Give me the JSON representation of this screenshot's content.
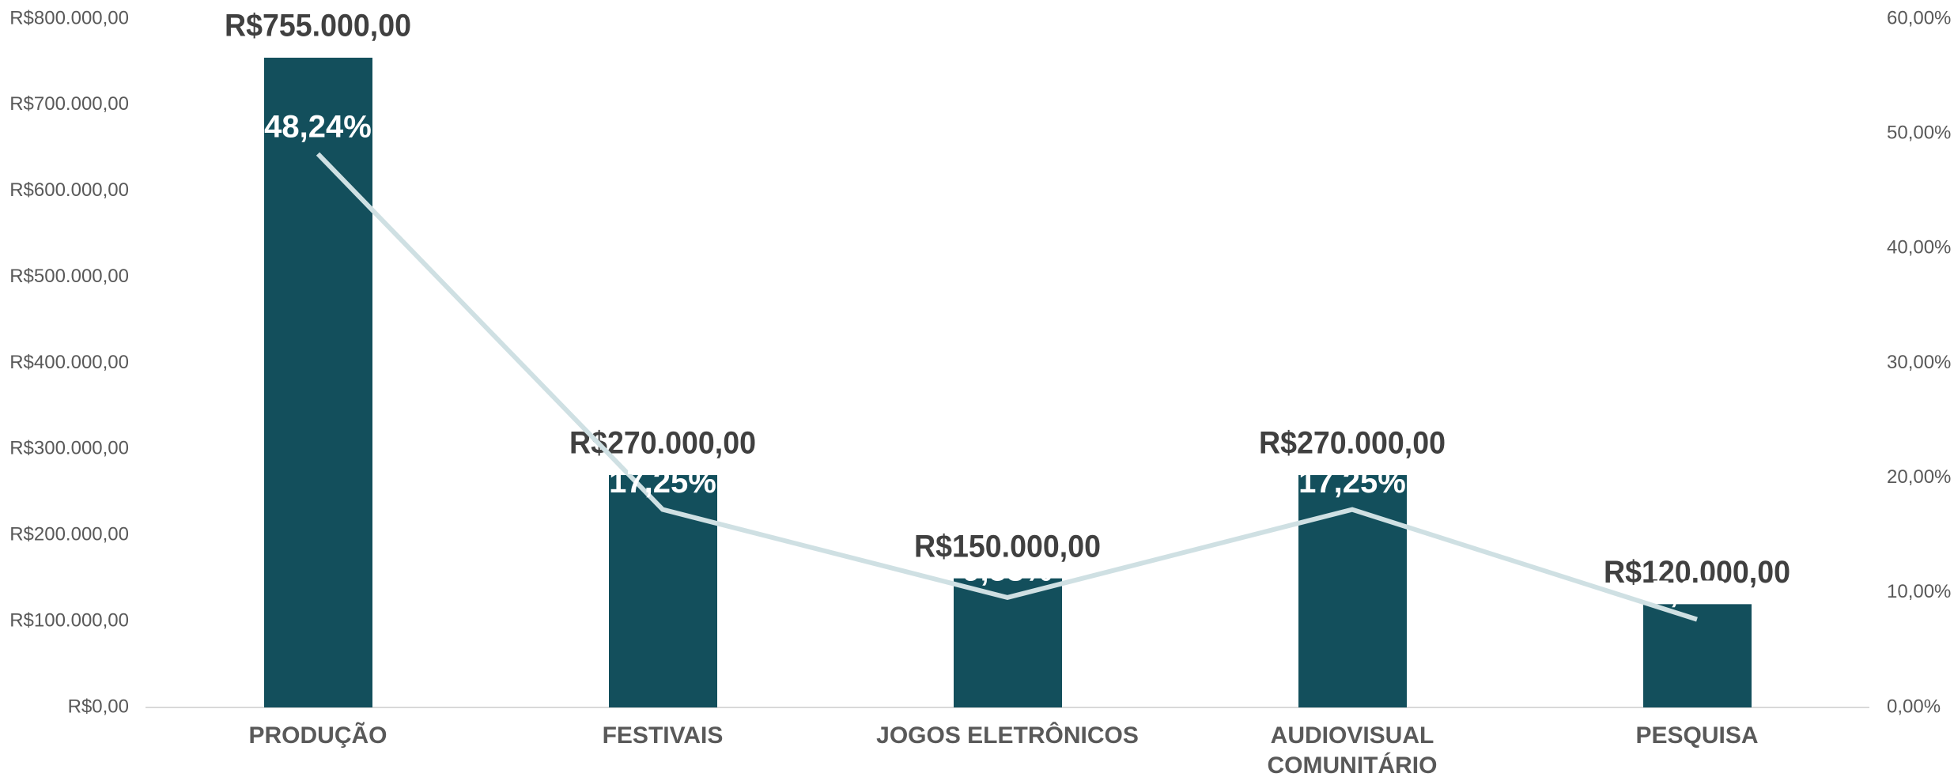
{
  "chart_data": {
    "type": "bar",
    "categories": [
      "PRODUÇÃO",
      "FESTIVAIS",
      "JOGOS ELETRÔNICOS",
      "AUDIOVISUAL COMUNITÁRIO",
      "PESQUISA"
    ],
    "series": [
      {
        "type": "bar",
        "color": "#134f5c",
        "values": [
          755000,
          270000,
          150000,
          270000,
          120000
        ],
        "value_labels": [
          "R$755.000,00",
          "R$270.000,00",
          "R$150.000,00",
          "R$270.000,00",
          "R$120.000,00"
        ]
      },
      {
        "type": "line",
        "axis": "y2",
        "color": "#cfe0e3",
        "values": [
          48.24,
          17.25,
          9.58,
          17.25,
          7.67
        ],
        "value_labels": [
          "48,24%",
          "17,25%",
          "9,58%",
          "17,25%",
          "7,67%"
        ]
      }
    ],
    "ylim": [
      0,
      800000
    ],
    "yticks": [
      {
        "value": 0,
        "label": "R$0,00"
      },
      {
        "value": 100000,
        "label": "R$100.000,00"
      },
      {
        "value": 200000,
        "label": "R$200.000,00"
      },
      {
        "value": 300000,
        "label": "R$300.000,00"
      },
      {
        "value": 400000,
        "label": "R$400.000,00"
      },
      {
        "value": 500000,
        "label": "R$500.000,00"
      },
      {
        "value": 600000,
        "label": "R$600.000,00"
      },
      {
        "value": 700000,
        "label": "R$700.000,00"
      },
      {
        "value": 800000,
        "label": "R$800.000,00"
      }
    ],
    "y2lim": [
      0,
      60
    ],
    "y2ticks": [
      {
        "value": 0,
        "label": "0,00%"
      },
      {
        "value": 10,
        "label": "10,00%"
      },
      {
        "value": 20,
        "label": "20,00%"
      },
      {
        "value": 30,
        "label": "30,00%"
      },
      {
        "value": 40,
        "label": "40,00%"
      },
      {
        "value": 50,
        "label": "50,00%"
      },
      {
        "value": 60,
        "label": "60,00%"
      }
    ],
    "grid": false
  }
}
